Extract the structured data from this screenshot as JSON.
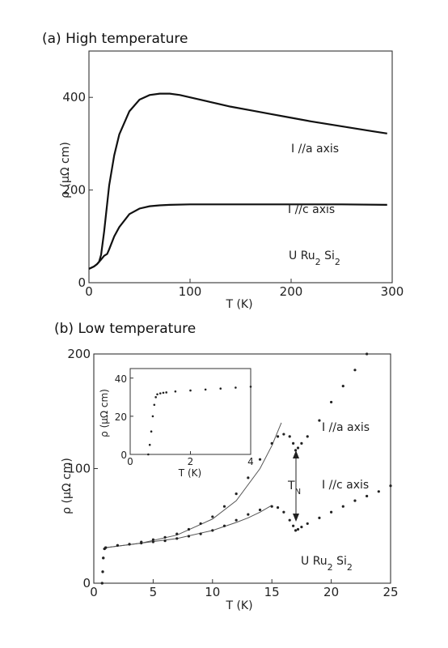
{
  "chart_data": [
    {
      "type": "line",
      "panel_title": "(a) High temperature",
      "xlabel": "T (K)",
      "ylabel": "ρ (μΩ cm)",
      "xlim": [
        0,
        300
      ],
      "ylim": [
        0,
        500
      ],
      "xticks": [
        0,
        100,
        200,
        300
      ],
      "yticks": [
        0,
        200,
        400
      ],
      "grid": false,
      "annotations": [
        "I //a axis",
        "I //c axis",
        "U Ru2 Si2"
      ],
      "series": [
        {
          "name": "I //a axis",
          "x": [
            0,
            2,
            5,
            8,
            10,
            12,
            15,
            18,
            20,
            25,
            30,
            40,
            50,
            60,
            70,
            80,
            90,
            100,
            120,
            140,
            160,
            180,
            200,
            220,
            240,
            260,
            280,
            295
          ],
          "y": [
            30,
            32,
            35,
            40,
            45,
            60,
            110,
            170,
            210,
            275,
            320,
            370,
            395,
            405,
            408,
            408,
            405,
            400,
            390,
            380,
            372,
            364,
            356,
            348,
            341,
            334,
            327,
            322
          ]
        },
        {
          "name": "I //c axis",
          "x": [
            0,
            2,
            5,
            8,
            10,
            12,
            15,
            18,
            20,
            25,
            30,
            40,
            50,
            60,
            70,
            80,
            100,
            150,
            200,
            250,
            295
          ],
          "y": [
            30,
            32,
            35,
            40,
            45,
            50,
            58,
            62,
            72,
            100,
            120,
            148,
            160,
            165,
            167,
            168,
            169,
            169,
            169,
            169,
            168
          ]
        }
      ]
    },
    {
      "type": "scatter",
      "panel_title": "(b) Low temperature",
      "xlabel": "T (K)",
      "ylabel": "ρ (μΩ cm)",
      "xlim": [
        0,
        25
      ],
      "ylim": [
        0,
        200
      ],
      "xticks": [
        0,
        5,
        10,
        15,
        20,
        25
      ],
      "yticks": [
        0,
        100,
        200
      ],
      "grid": false,
      "annotations": [
        "I //a axis",
        "I //c axis",
        "T_N",
        "U Ru2 Si2"
      ],
      "series": [
        {
          "name": "I //a axis",
          "x": [
            0.7,
            0.75,
            0.8,
            0.9,
            1,
            2,
            3,
            4,
            5,
            6,
            7,
            8,
            9,
            10,
            11,
            12,
            13,
            14,
            15,
            15.5,
            16,
            16.5,
            16.8,
            17,
            17.2,
            17.5,
            18,
            19,
            20,
            21,
            22,
            23
          ],
          "y": [
            0,
            10,
            22,
            30,
            31,
            33,
            34,
            36,
            38,
            40,
            43,
            47,
            52,
            58,
            67,
            78,
            92,
            108,
            122,
            128,
            130,
            128,
            122,
            116,
            118,
            122,
            128,
            142,
            158,
            172,
            186,
            200
          ]
        },
        {
          "name": "I //c axis",
          "x": [
            0.7,
            0.75,
            0.8,
            0.9,
            1,
            2,
            3,
            4,
            5,
            6,
            7,
            8,
            9,
            10,
            11,
            12,
            13,
            14,
            15,
            15.5,
            16,
            16.5,
            16.8,
            17,
            17.2,
            17.5,
            18,
            19,
            20,
            21,
            22,
            23,
            24,
            25
          ],
          "y": [
            0,
            10,
            22,
            30,
            31,
            33,
            34,
            35,
            36,
            37,
            39,
            41,
            43,
            46,
            50,
            55,
            60,
            64,
            67,
            66,
            62,
            55,
            50,
            46,
            47,
            49,
            52,
            57,
            62,
            67,
            72,
            76,
            80,
            85
          ]
        }
      ],
      "fits": [
        {
          "x": [
            1,
            4,
            7,
            10,
            12,
            14,
            15,
            15.8
          ],
          "y": [
            31,
            35,
            42,
            56,
            72,
            100,
            120,
            140
          ]
        },
        {
          "x": [
            1,
            4,
            7,
            10,
            12,
            13,
            14,
            15
          ],
          "y": [
            31,
            35,
            39,
            46,
            53,
            57,
            62,
            68
          ]
        }
      ],
      "inset": {
        "type": "scatter",
        "xlabel": "T (K)",
        "ylabel": "ρ (μΩ cm)",
        "xlim": [
          0,
          4
        ],
        "ylim": [
          0,
          45
        ],
        "xticks": [
          0,
          2,
          4
        ],
        "yticks": [
          0,
          20,
          40
        ],
        "x": [
          0.6,
          0.65,
          0.7,
          0.75,
          0.8,
          0.85,
          0.9,
          1.0,
          1.1,
          1.2,
          1.5,
          2.0,
          2.5,
          3.0,
          3.5,
          4.0
        ],
        "y": [
          0,
          5,
          12,
          20,
          26,
          30,
          31.5,
          32,
          32.3,
          32.5,
          33,
          33.5,
          34,
          34.5,
          35,
          35.5
        ]
      }
    }
  ]
}
